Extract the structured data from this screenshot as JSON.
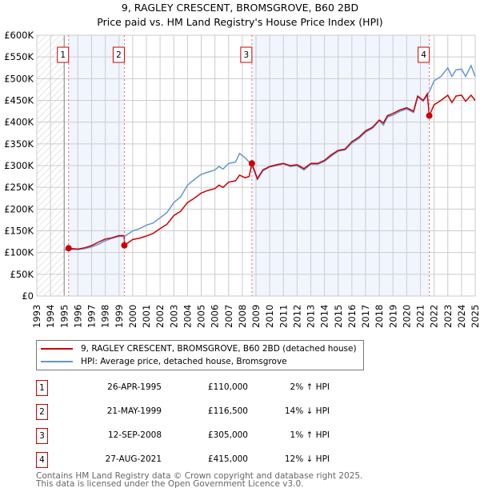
{
  "title": "9, RAGLEY CRESCENT, BROMSGROVE, B60 2BD",
  "subtitle": "Price paid vs. HM Land Registry's House Price Index (HPI)",
  "chart_data": {
    "type": "line",
    "xlim": [
      1993,
      2025
    ],
    "ylim": [
      0,
      600000
    ],
    "x_ticks": [
      "1993",
      "1994",
      "1995",
      "1996",
      "1997",
      "1998",
      "1999",
      "2000",
      "2001",
      "2002",
      "2003",
      "2004",
      "2005",
      "2006",
      "2007",
      "2008",
      "2009",
      "2010",
      "2011",
      "2012",
      "2013",
      "2014",
      "2015",
      "2016",
      "2017",
      "2018",
      "2019",
      "2020",
      "2021",
      "2022",
      "2023",
      "2024",
      "2025"
    ],
    "y_ticks": [
      {
        "v": 0,
        "label": "£0"
      },
      {
        "v": 50000,
        "label": "£50K"
      },
      {
        "v": 100000,
        "label": "£100K"
      },
      {
        "v": 150000,
        "label": "£150K"
      },
      {
        "v": 200000,
        "label": "£200K"
      },
      {
        "v": 250000,
        "label": "£250K"
      },
      {
        "v": 300000,
        "label": "£300K"
      },
      {
        "v": 350000,
        "label": "£350K"
      },
      {
        "v": 400000,
        "label": "£400K"
      },
      {
        "v": 450000,
        "label": "£450K"
      },
      {
        "v": 500000,
        "label": "£500K"
      },
      {
        "v": 550000,
        "label": "£550K"
      },
      {
        "v": 600000,
        "label": "£600K"
      }
    ],
    "series": [
      {
        "name": "9, RAGLEY CRESCENT, BROMSGROVE, B60 2BD (detached house)",
        "color": "#cc0000",
        "x": [
          1995.3,
          1996,
          1996.5,
          1997,
          1997.5,
          1998,
          1998.5,
          1999,
          1999.38,
          1999.4,
          2000,
          2000.5,
          2001,
          2001.5,
          2002,
          2002.5,
          2003,
          2003.5,
          2004,
          2004.5,
          2005,
          2005.5,
          2006,
          2006.3,
          2006.6,
          2007,
          2007.5,
          2007.8,
          2008.2,
          2008.5,
          2008.7,
          2009.1,
          2009.5,
          2010,
          2010.5,
          2011,
          2011.5,
          2012,
          2012.5,
          2013,
          2013.5,
          2014,
          2014.5,
          2015,
          2015.5,
          2016,
          2016.5,
          2017,
          2017.5,
          2018,
          2018.3,
          2018.6,
          2019,
          2019.5,
          2020,
          2020.5,
          2020.8,
          2021.2,
          2021.5,
          2021.65,
          2022,
          2022.5,
          2023,
          2023.3,
          2023.6,
          2024,
          2024.3,
          2024.7,
          2025
        ],
        "y": [
          110000,
          108000,
          111000,
          116000,
          124000,
          131000,
          134000,
          139000,
          139000,
          116500,
          130000,
          133000,
          138000,
          144000,
          155000,
          165000,
          185000,
          195000,
          215000,
          225000,
          237000,
          243000,
          247000,
          255000,
          250000,
          262000,
          265000,
          278000,
          272000,
          275000,
          305000,
          270000,
          290000,
          298000,
          302000,
          305000,
          300000,
          302000,
          293000,
          305000,
          305000,
          312000,
          325000,
          335000,
          338000,
          355000,
          365000,
          380000,
          388000,
          405000,
          398000,
          415000,
          420000,
          428000,
          433000,
          425000,
          460000,
          450000,
          465000,
          415000,
          440000,
          450000,
          462000,
          445000,
          460000,
          462000,
          448000,
          462000,
          450000
        ]
      },
      {
        "name": "HPI: Average price, detached house, Bromsgrove",
        "color": "#6496d2",
        "x": [
          1995,
          1995.5,
          1996,
          1996.5,
          1997,
          1997.5,
          1998,
          1998.5,
          1999,
          1999.4,
          2000,
          2000.5,
          2001,
          2001.5,
          2002,
          2002.5,
          2003,
          2003.5,
          2004,
          2004.5,
          2005,
          2005.5,
          2006,
          2006.3,
          2006.6,
          2007,
          2007.5,
          2007.8,
          2008.2,
          2008.7,
          2009.1,
          2009.5,
          2010,
          2010.5,
          2011,
          2011.5,
          2012,
          2012.5,
          2013,
          2013.5,
          2014,
          2014.5,
          2015,
          2015.5,
          2016,
          2016.5,
          2017,
          2017.5,
          2018,
          2018.3,
          2018.6,
          2019,
          2019.5,
          2020,
          2020.5,
          2020.8,
          2021.2,
          2021.5,
          2021.65,
          2022,
          2022.5,
          2023,
          2023.3,
          2023.6,
          2024,
          2024.3,
          2024.7,
          2025
        ],
        "y": [
          106000,
          107000,
          107000,
          109000,
          113000,
          119000,
          127000,
          133000,
          137000,
          137000,
          150000,
          155000,
          163000,
          168000,
          180000,
          192000,
          215000,
          228000,
          255000,
          268000,
          280000,
          285000,
          290000,
          298000,
          292000,
          305000,
          308000,
          328000,
          318000,
          302000,
          268000,
          288000,
          297000,
          300000,
          304000,
          298000,
          300000,
          290000,
          303000,
          303000,
          310000,
          322000,
          333000,
          336000,
          352000,
          362000,
          377000,
          386000,
          403000,
          393000,
          412000,
          416000,
          425000,
          430000,
          422000,
          458000,
          448000,
          462000,
          470000,
          495000,
          505000,
          525000,
          505000,
          520000,
          522000,
          505000,
          530000,
          505000
        ]
      }
    ],
    "sales": [
      {
        "label": "1",
        "x": 1995.32,
        "price": 110000
      },
      {
        "label": "2",
        "x": 1999.39,
        "price": 116500
      },
      {
        "label": "3",
        "x": 2008.7,
        "price": 305000
      },
      {
        "label": "4",
        "x": 2021.65,
        "price": 415000
      }
    ]
  },
  "legend": [
    {
      "label": "9, RAGLEY CRESCENT, BROMSGROVE, B60 2BD (detached house)",
      "color": "#cc0000"
    },
    {
      "label": "HPI: Average price, detached house, Bromsgrove",
      "color": "#6496d2"
    }
  ],
  "transactions": [
    {
      "num": "1",
      "date": "26-APR-1995",
      "price": "£110,000",
      "hpi": "2% ↑ HPI"
    },
    {
      "num": "2",
      "date": "21-MAY-1999",
      "price": "£116,500",
      "hpi": "14% ↓ HPI"
    },
    {
      "num": "3",
      "date": "12-SEP-2008",
      "price": "£305,000",
      "hpi": "1% ↑ HPI"
    },
    {
      "num": "4",
      "date": "27-AUG-2021",
      "price": "£415,000",
      "hpi": "12% ↓ HPI"
    }
  ],
  "footer": [
    "Contains HM Land Registry data © Crown copyright and database right 2025.",
    "This data is licensed under the Open Government Licence v3.0."
  ]
}
